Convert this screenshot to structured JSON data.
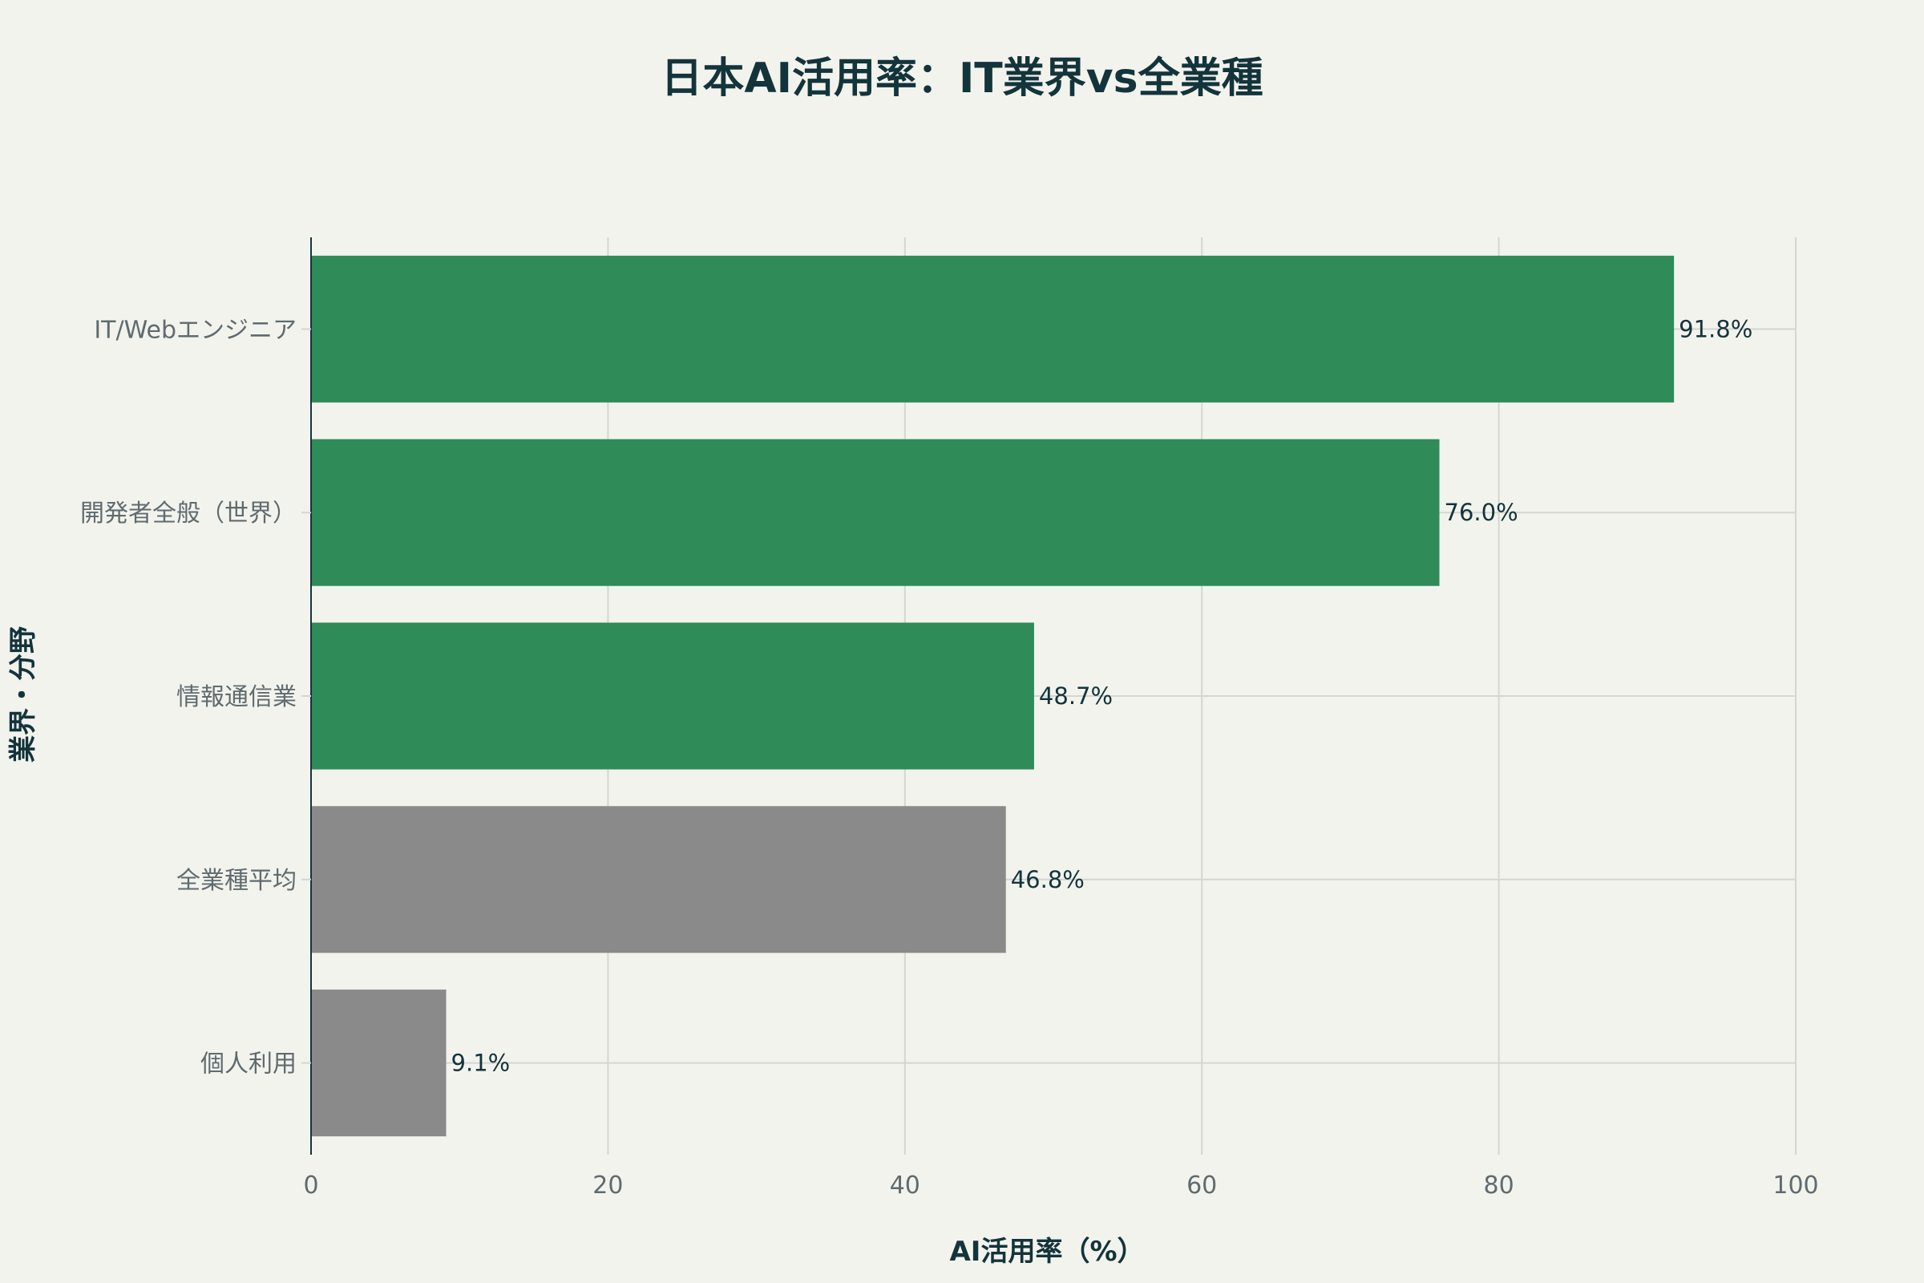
{
  "chart_data": {
    "type": "bar",
    "orientation": "horizontal",
    "title": "日本AI活用率：IT業界vs全業種",
    "xlabel": "AI活用率（%）",
    "ylabel": "業界・分野",
    "xlim": [
      0,
      100
    ],
    "x_ticks": [
      0,
      20,
      40,
      60,
      80,
      100
    ],
    "grid": true,
    "categories": [
      "IT/Webエンジニア",
      "開発者全般（世界）",
      "情報通信業",
      "全業種平均",
      "個人利用"
    ],
    "values": [
      91.8,
      76.0,
      48.7,
      46.8,
      9.1
    ],
    "data_labels": [
      "91.8%",
      "76.0%",
      "48.7%",
      "46.8%",
      "9.1%"
    ],
    "bar_colors": [
      "#2f8b58",
      "#2f8b58",
      "#2f8b58",
      "#8a8a8a",
      "#8a8a8a"
    ]
  }
}
